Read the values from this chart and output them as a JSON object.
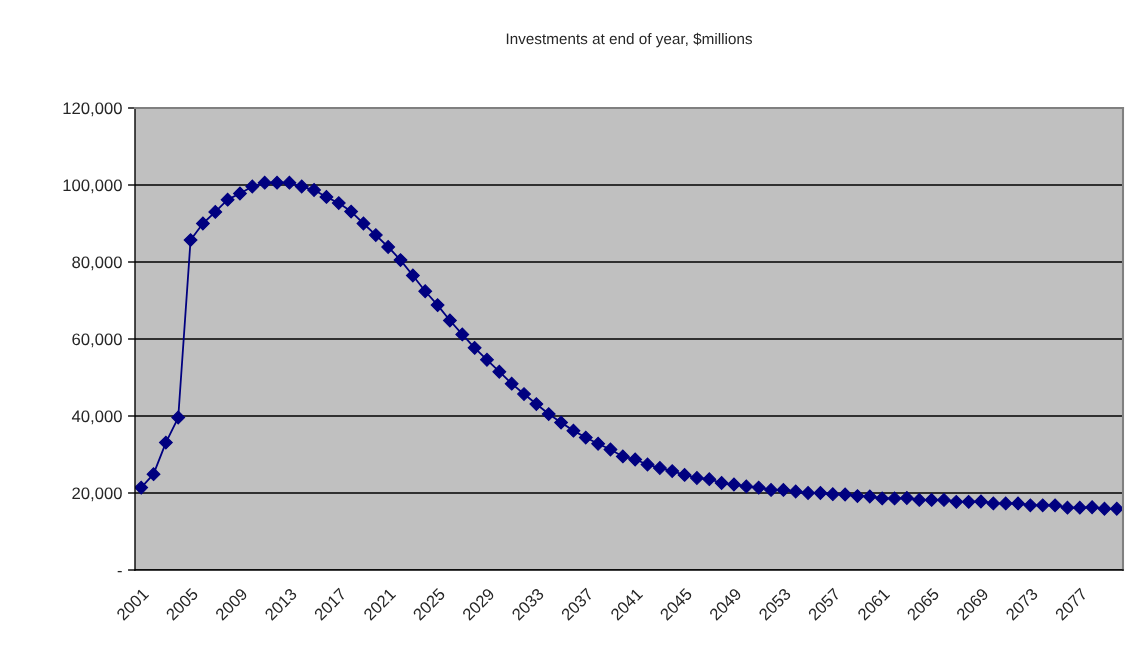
{
  "chart_data": {
    "type": "line",
    "title": "Investments at end of year, $millions",
    "categories": [
      "2001",
      null,
      null,
      null,
      "2005",
      null,
      null,
      null,
      "2009",
      null,
      null,
      null,
      "2013",
      null,
      null,
      null,
      "2017",
      null,
      null,
      null,
      "2021",
      null,
      null,
      null,
      "2025",
      null,
      null,
      null,
      "2029",
      null,
      null,
      null,
      "2033",
      null,
      null,
      null,
      "2037",
      null,
      null,
      null,
      "2041",
      null,
      null,
      null,
      "2045",
      null,
      null,
      null,
      "2049",
      null,
      null,
      null,
      "2053",
      null,
      null,
      null,
      "2057",
      null,
      null,
      null,
      "2061",
      null,
      null,
      null,
      "2065",
      null,
      null,
      null,
      "2069",
      null,
      null,
      null,
      "2073",
      null,
      null,
      null,
      "2077",
      null,
      null,
      null
    ],
    "values": [
      21400,
      24900,
      33100,
      39600,
      85700,
      90000,
      93000,
      96200,
      97800,
      99600,
      100600,
      100600,
      100600,
      99600,
      98700,
      96900,
      95300,
      93100,
      90000,
      87000,
      83900,
      80500,
      76500,
      72400,
      68800,
      64800,
      61200,
      57700,
      54600,
      51500,
      48400,
      45700,
      43100,
      40500,
      38300,
      36200,
      34400,
      32800,
      31300,
      29500,
      28700,
      27400,
      26500,
      25700,
      24700,
      23900,
      23600,
      22600,
      22200,
      21700,
      21400,
      20800,
      20800,
      20400,
      20000,
      20000,
      19700,
      19600,
      19200,
      19100,
      18600,
      18600,
      18700,
      18200,
      18200,
      18200,
      17700,
      17700,
      17800,
      17300,
      17300,
      17300,
      16800,
      16800,
      16800,
      16200,
      16200,
      16300,
      15900,
      15900
    ],
    "color": "#000080",
    "marker": "diamond",
    "line_style": "solid",
    "ylim": [
      0,
      120000
    ],
    "yticks": [
      {
        "value": 0,
        "label": "-"
      },
      {
        "value": 20000,
        "label": "20,000"
      },
      {
        "value": 40000,
        "label": "40,000"
      },
      {
        "value": 60000,
        "label": "60,000"
      },
      {
        "value": 80000,
        "label": "80,000"
      },
      {
        "value": 100000,
        "label": "100,000"
      },
      {
        "value": 120000,
        "label": "120,000"
      }
    ],
    "grid": "y",
    "legend": false
  }
}
